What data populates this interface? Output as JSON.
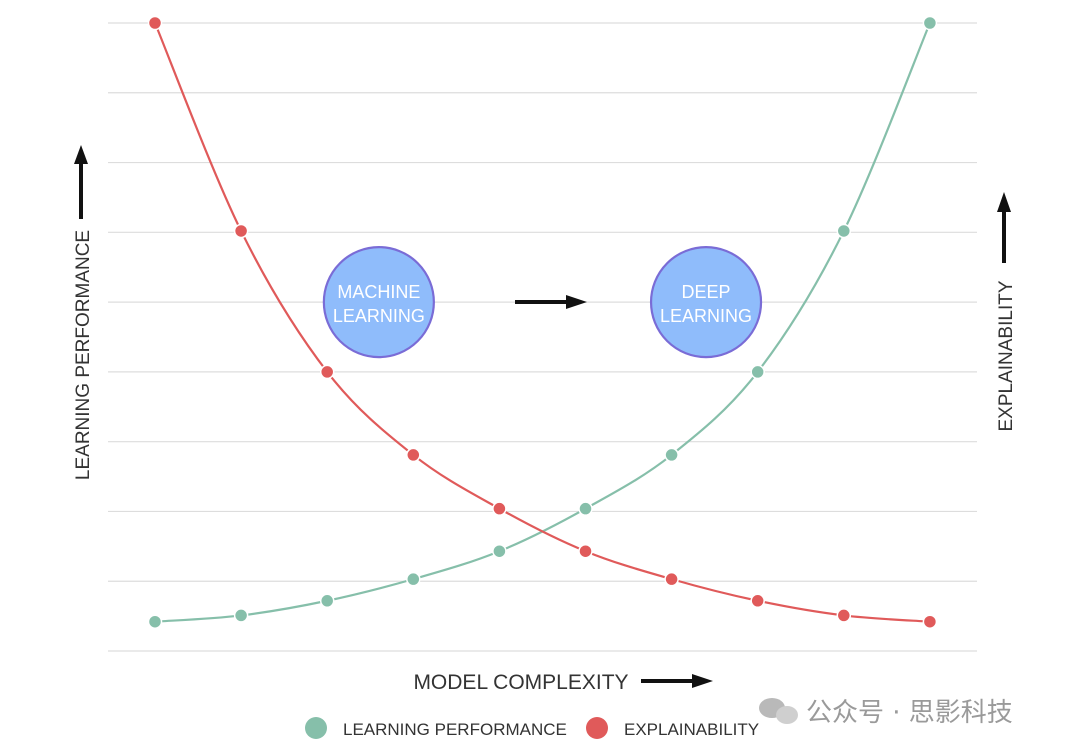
{
  "chart_data": {
    "type": "line",
    "title": "",
    "xlabel": "MODEL COMPLEXITY",
    "ylabel_left": "LEARNING PERFORMANCE",
    "ylabel_right": "EXPLAINABILITY",
    "x": [
      1,
      2,
      3,
      4,
      5,
      6,
      7,
      8,
      9,
      10
    ],
    "ylim": [
      0,
      9
    ],
    "grid": true,
    "legend_position": "bottom",
    "series": [
      {
        "name": "LEARNING PERFORMANCE",
        "color": "#86bfaa",
        "values": [
          0.42,
          0.51,
          0.72,
          1.03,
          1.43,
          2.04,
          2.81,
          4.0,
          6.02,
          9.0
        ]
      },
      {
        "name": "EXPLAINABILITY",
        "color": "#e05a5a",
        "values": [
          9.0,
          6.02,
          4.0,
          2.81,
          2.04,
          1.43,
          1.03,
          0.72,
          0.51,
          0.42
        ]
      }
    ],
    "annotations": [
      {
        "id": "ml",
        "text_line1": "MACHINE",
        "text_line2": "LEARNING",
        "x": 3.6,
        "y": 5.0
      },
      {
        "id": "dl",
        "text_line1": "DEEP",
        "text_line2": "LEARNING",
        "x": 7.4,
        "y": 5.0
      }
    ]
  },
  "colors": {
    "grid": "#dddddd",
    "bubble_fill": "#8fbcfb",
    "bubble_stroke": "#7a6cd6",
    "arrow": "#111111"
  },
  "watermark": "公众号 · 思影科技"
}
